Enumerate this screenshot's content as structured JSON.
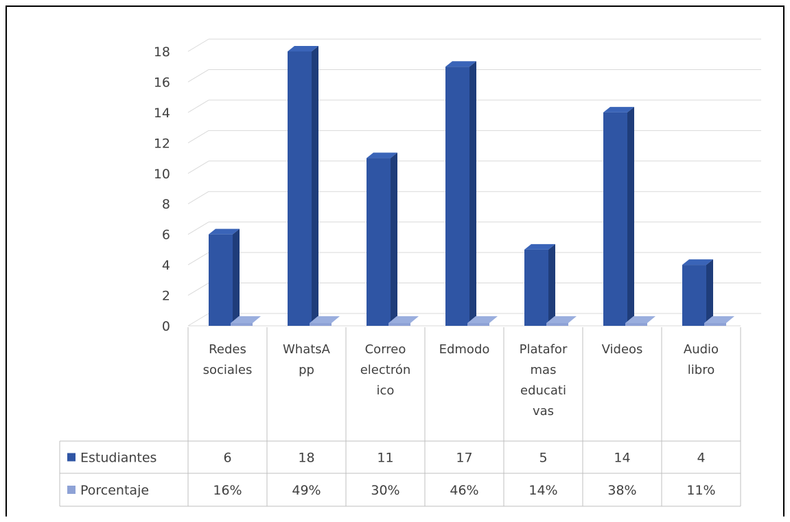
{
  "chart_data": {
    "type": "bar",
    "style": "3d-clustered-column-with-data-table",
    "categories": [
      "Redes sociales",
      "WhatsApp",
      "Correo electrónico",
      "Edmodo",
      "Plataformas educativas",
      "Videos",
      "Audio libro"
    ],
    "category_label_lines": [
      [
        "Redes",
        "sociales"
      ],
      [
        "WhatsA",
        "pp"
      ],
      [
        "Correo",
        "electrón",
        "ico"
      ],
      [
        "Edmodo"
      ],
      [
        "Platafor",
        "mas",
        "educati",
        "vas"
      ],
      [
        "Videos"
      ],
      [
        "Audio",
        "libro"
      ]
    ],
    "series": [
      {
        "name": "Estudiantes",
        "values": [
          6,
          18,
          11,
          17,
          5,
          14,
          4
        ],
        "table_labels": [
          "6",
          "18",
          "11",
          "17",
          "5",
          "14",
          "4"
        ],
        "color": "#2f55a4"
      },
      {
        "name": "Porcentaje",
        "values": [
          0.16,
          0.49,
          0.3,
          0.46,
          0.14,
          0.38,
          0.11
        ],
        "table_labels": [
          "16%",
          "49%",
          "30%",
          "46%",
          "14%",
          "38%",
          "11%"
        ],
        "color": "#8ea2d6"
      }
    ],
    "ylim": [
      0,
      18
    ],
    "yticks": [
      "0",
      "2",
      "4",
      "6",
      "8",
      "10",
      "12",
      "14",
      "16",
      "18"
    ],
    "grid": true,
    "legend": "data-table"
  }
}
